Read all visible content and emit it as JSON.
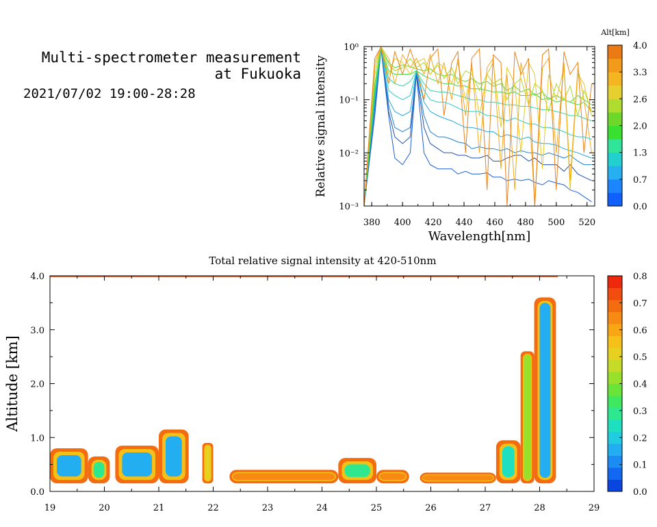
{
  "header": {
    "title_line1": "Multi-spectrometer measurement",
    "title_line2": "at Fukuoka",
    "date_range": "2021/07/02 19:00-28:28"
  },
  "chart_data": [
    {
      "type": "line",
      "xlabel": "Wavelength[nm]",
      "ylabel": "Relative signal intensity",
      "xlim": [
        375,
        525
      ],
      "ylim": [
        0.001,
        1
      ],
      "yscale": "log",
      "xticks": [
        380,
        400,
        420,
        440,
        460,
        480,
        500,
        520
      ],
      "yticks": [
        0.001,
        0.01,
        0.1,
        1
      ],
      "ytick_labels": [
        "10⁻³",
        "10⁻²",
        "10⁻¹",
        "10⁰"
      ],
      "colorbar": {
        "title": "Alt[km]",
        "ticks": [
          "4.0",
          "3.3",
          "2.6",
          "2.0",
          "1.3",
          "0.7",
          "0.0"
        ],
        "colors": [
          "#1060ff",
          "#1b86ff",
          "#26b0f0",
          "#22d0d0",
          "#30e49a",
          "#3ae030",
          "#6ed82a",
          "#b0dc30",
          "#e6d030",
          "#f4b520",
          "#f29a1a",
          "#ec7a14"
        ]
      },
      "x": [
        375,
        382,
        386,
        391,
        395,
        400,
        405,
        409,
        414,
        418,
        423,
        427,
        432,
        436,
        441,
        445,
        450,
        455,
        459,
        464,
        468,
        473,
        477,
        482,
        486,
        491,
        495,
        500,
        505,
        509,
        514,
        518,
        523
      ],
      "series": [
        {
          "color": "#1b5fd6",
          "values": [
            0.0009,
            0.05,
            0.9,
            0.05,
            0.008,
            0.006,
            0.01,
            0.3,
            0.01,
            0.006,
            0.005,
            0.005,
            0.005,
            0.004,
            0.0045,
            0.004,
            0.004,
            0.0042,
            0.0035,
            0.0035,
            0.003,
            0.0032,
            0.003,
            0.0032,
            0.0028,
            0.0025,
            0.003,
            0.0027,
            0.0025,
            0.002,
            0.0018,
            0.0015,
            0.0012
          ]
        },
        {
          "color": "#1d4fa8",
          "values": [
            0.0009,
            0.07,
            0.92,
            0.06,
            0.02,
            0.015,
            0.02,
            0.32,
            0.03,
            0.015,
            0.012,
            0.01,
            0.01,
            0.009,
            0.009,
            0.008,
            0.008,
            0.009,
            0.007,
            0.007,
            0.008,
            0.009,
            0.009,
            0.007,
            0.008,
            0.006,
            0.006,
            0.006,
            0.0045,
            0.006,
            0.004,
            0.0035,
            0.003
          ]
        },
        {
          "color": "#1f7fd0",
          "values": [
            0.0009,
            0.08,
            0.93,
            0.08,
            0.03,
            0.025,
            0.03,
            0.33,
            0.05,
            0.025,
            0.02,
            0.02,
            0.018,
            0.016,
            0.015,
            0.012,
            0.013,
            0.012,
            0.012,
            0.011,
            0.012,
            0.01,
            0.011,
            0.01,
            0.01,
            0.009,
            0.01,
            0.009,
            0.008,
            0.009,
            0.007,
            0.006,
            0.006
          ]
        },
        {
          "color": "#22a8e0",
          "values": [
            0.001,
            0.1,
            0.94,
            0.1,
            0.06,
            0.05,
            0.06,
            0.34,
            0.09,
            0.06,
            0.05,
            0.045,
            0.04,
            0.035,
            0.03,
            0.03,
            0.028,
            0.025,
            0.025,
            0.02,
            0.022,
            0.02,
            0.018,
            0.02,
            0.016,
            0.015,
            0.015,
            0.014,
            0.012,
            0.011,
            0.01,
            0.009,
            0.008
          ]
        },
        {
          "color": "#22cccc",
          "values": [
            0.001,
            0.12,
            0.95,
            0.15,
            0.12,
            0.1,
            0.12,
            0.34,
            0.15,
            0.1,
            0.09,
            0.09,
            0.08,
            0.07,
            0.06,
            0.06,
            0.06,
            0.05,
            0.05,
            0.045,
            0.04,
            0.045,
            0.04,
            0.035,
            0.035,
            0.03,
            0.03,
            0.028,
            0.025,
            0.022,
            0.02,
            0.02,
            0.018
          ]
        },
        {
          "color": "#2ad8a0",
          "values": [
            0.001,
            0.14,
            0.95,
            0.25,
            0.2,
            0.18,
            0.22,
            0.34,
            0.2,
            0.15,
            0.14,
            0.14,
            0.13,
            0.12,
            0.11,
            0.1,
            0.1,
            0.09,
            0.09,
            0.085,
            0.08,
            0.08,
            0.075,
            0.075,
            0.07,
            0.065,
            0.065,
            0.06,
            0.055,
            0.05,
            0.05,
            0.045,
            0.04
          ]
        },
        {
          "color": "#3ad84a",
          "values": [
            0.001,
            0.15,
            0.96,
            0.35,
            0.3,
            0.3,
            0.3,
            0.35,
            0.28,
            0.25,
            0.22,
            0.2,
            0.2,
            0.18,
            0.18,
            0.16,
            0.16,
            0.15,
            0.14,
            0.14,
            0.13,
            0.14,
            0.12,
            0.12,
            0.13,
            0.1,
            0.11,
            0.09,
            0.1,
            0.09,
            0.08,
            0.09,
            0.06
          ]
        },
        {
          "color": "#62d42a",
          "values": [
            0.001,
            0.2,
            0.96,
            0.5,
            0.4,
            0.45,
            0.42,
            0.38,
            0.35,
            0.38,
            0.3,
            0.28,
            0.3,
            0.25,
            0.22,
            0.25,
            0.2,
            0.22,
            0.18,
            0.2,
            0.15,
            0.18,
            0.14,
            0.16,
            0.12,
            0.14,
            0.1,
            0.12,
            0.1,
            0.09,
            0.12,
            0.1,
            0.08
          ]
        },
        {
          "color": "#a8d830",
          "values": [
            0.001,
            0.3,
            0.97,
            0.45,
            0.35,
            0.4,
            0.6,
            0.4,
            0.5,
            0.3,
            0.45,
            0.25,
            0.4,
            0.2,
            0.35,
            0.3,
            0.15,
            0.3,
            0.2,
            0.25,
            0.1,
            0.2,
            0.25,
            0.08,
            0.2,
            0.15,
            0.06,
            0.2,
            0.1,
            0.18,
            0.05,
            0.15,
            0.06
          ]
        },
        {
          "color": "#e4c82a",
          "values": [
            0.001,
            0.4,
            0.97,
            0.3,
            0.6,
            0.5,
            0.3,
            0.5,
            0.6,
            0.3,
            0.5,
            0.4,
            0.2,
            0.5,
            0.1,
            0.4,
            0.05,
            0.3,
            0.5,
            0.03,
            0.4,
            0.2,
            0.01,
            0.5,
            0.3,
            0.005,
            0.3,
            0.1,
            0.4,
            0.002,
            0.3,
            0.2,
            0.05
          ]
        },
        {
          "color": "#f2a81c",
          "values": [
            0.001,
            0.5,
            0.98,
            0.6,
            0.2,
            0.7,
            0.4,
            0.6,
            0.3,
            0.7,
            0.2,
            0.5,
            0.1,
            0.6,
            0.05,
            0.5,
            0.01,
            0.4,
            0.6,
            0.005,
            0.3,
            0.002,
            0.5,
            0.1,
            0.001,
            0.4,
            0.6,
            0.01,
            0.5,
            0.003,
            0.4,
            0.1,
            0.01
          ]
        },
        {
          "color": "#e8801a",
          "values": [
            0.001,
            0.6,
            0.98,
            0.2,
            0.8,
            0.3,
            0.9,
            0.4,
            0.1,
            0.6,
            0.9,
            0.05,
            0.5,
            0.8,
            0.01,
            0.6,
            0.9,
            0.002,
            0.7,
            0.5,
            0.001,
            0.8,
            0.3,
            0.6,
            0.001,
            0.7,
            0.9,
            0.002,
            0.8,
            0.3,
            0.5,
            0.01,
            0.2
          ]
        }
      ]
    },
    {
      "type": "heatmap",
      "title": "Total relative signal intensity at 420-510nm",
      "ylabel": "Altitude [km]",
      "xlim": [
        19,
        29
      ],
      "ylim": [
        0,
        4
      ],
      "xticks": [
        19,
        20,
        21,
        22,
        23,
        24,
        25,
        26,
        27,
        28,
        29
      ],
      "yticks": [
        "0.0",
        "1.0",
        "2.0",
        "3.0",
        "4.0"
      ],
      "colorbar": {
        "ticks": [
          "0.8",
          "0.7",
          "0.6",
          "0.5",
          "0.4",
          "0.3",
          "0.2",
          "0.1",
          "0.0"
        ],
        "colors": [
          "#0b45e0",
          "#1268f0",
          "#1c8cf5",
          "#22aef0",
          "#20cce0",
          "#1ee0c0",
          "#2ee890",
          "#40e860",
          "#6ae438",
          "#98e02c",
          "#c4dc28",
          "#e6d020",
          "#f5c018",
          "#f8a614",
          "#f68a12",
          "#f46c10",
          "#f24c0e",
          "#ee280c"
        ]
      },
      "regions": [
        {
          "x0": 19.0,
          "x1": 19.7,
          "y0": 0.15,
          "y1": 0.8,
          "level": 0.15
        },
        {
          "x0": 19.7,
          "x1": 20.1,
          "y0": 0.15,
          "y1": 0.65,
          "level": 0.3
        },
        {
          "x0": 20.2,
          "x1": 21.0,
          "y0": 0.15,
          "y1": 0.85,
          "level": 0.12
        },
        {
          "x0": 21.0,
          "x1": 21.55,
          "y0": 0.15,
          "y1": 1.15,
          "level": 0.15
        },
        {
          "x0": 21.8,
          "x1": 22.0,
          "y0": 0.15,
          "y1": 0.9,
          "level": 0.5
        },
        {
          "x0": 22.3,
          "x1": 24.3,
          "y0": 0.15,
          "y1": 0.4,
          "level": 0.65
        },
        {
          "x0": 24.3,
          "x1": 25.0,
          "y0": 0.15,
          "y1": 0.62,
          "level": 0.3
        },
        {
          "x0": 25.0,
          "x1": 25.6,
          "y0": 0.15,
          "y1": 0.4,
          "level": 0.65
        },
        {
          "x0": 25.8,
          "x1": 27.2,
          "y0": 0.15,
          "y1": 0.35,
          "level": 0.68
        },
        {
          "x0": 27.2,
          "x1": 27.65,
          "y0": 0.15,
          "y1": 0.95,
          "level": 0.25
        },
        {
          "x0": 27.65,
          "x1": 27.9,
          "y0": 0.15,
          "y1": 2.6,
          "level": 0.4
        },
        {
          "x0": 27.9,
          "x1": 28.3,
          "y0": 0.15,
          "y1": 3.6,
          "level": 0.15
        }
      ]
    }
  ]
}
